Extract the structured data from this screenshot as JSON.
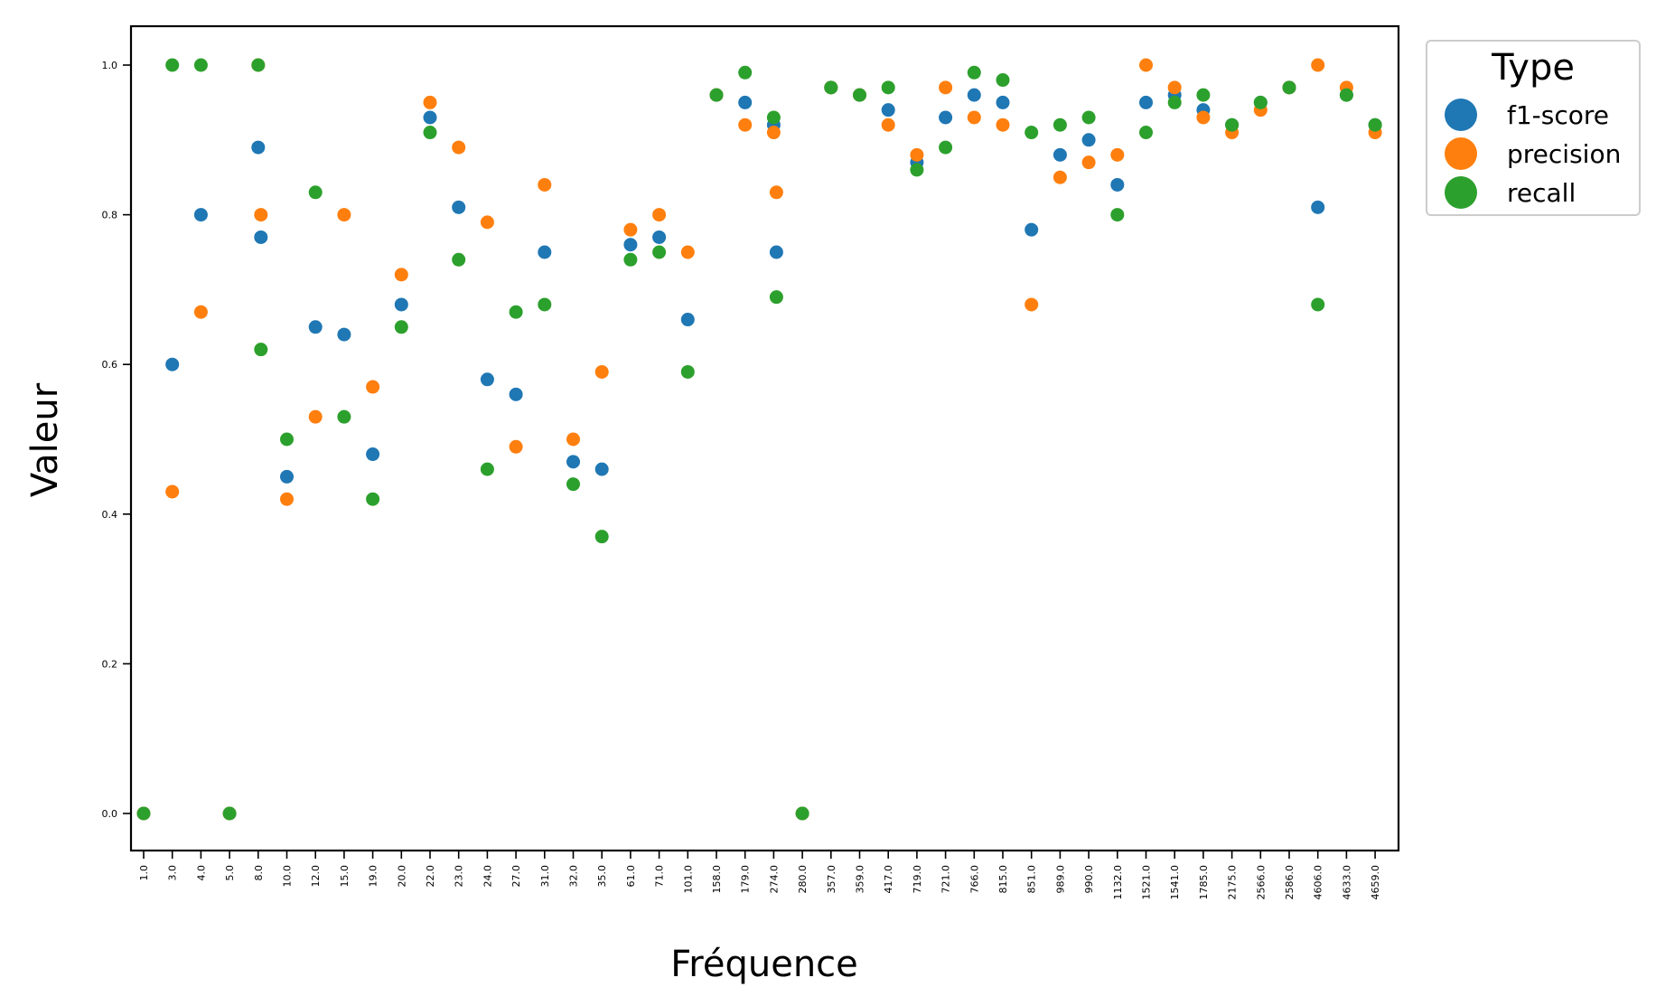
{
  "chart_data": {
    "type": "scatter",
    "xlabel": "Fréquence",
    "ylabel": "Valeur",
    "categories": [
      "1.0",
      "3.0",
      "4.0",
      "5.0",
      "8.0",
      "10.0",
      "12.0",
      "15.0",
      "19.0",
      "20.0",
      "22.0",
      "23.0",
      "24.0",
      "27.0",
      "31.0",
      "32.0",
      "35.0",
      "61.0",
      "71.0",
      "101.0",
      "158.0",
      "179.0",
      "274.0",
      "280.0",
      "357.0",
      "359.0",
      "417.0",
      "719.0",
      "721.0",
      "766.0",
      "815.0",
      "851.0",
      "989.0",
      "990.0",
      "1132.0",
      "1521.0",
      "1541.0",
      "1785.0",
      "2175.0",
      "2566.0",
      "2586.0",
      "4606.0",
      "4633.0",
      "4659.0"
    ],
    "ylim": [
      -0.05,
      1.05
    ],
    "yticks": [
      0.0,
      0.2,
      0.4,
      0.6,
      0.8,
      1.0
    ],
    "ytick_labels": [
      "0.0",
      "0.2",
      "0.4",
      "0.6",
      "0.8",
      "1.0"
    ],
    "grid": false,
    "legend": {
      "title": "Type",
      "position": "outside-top-right"
    },
    "series": [
      {
        "name": "f1-score",
        "color": "#1f77b4",
        "points": [
          {
            "x": "1.0",
            "y": 0.0
          },
          {
            "x": "3.0",
            "y": 0.6
          },
          {
            "x": "4.0",
            "y": 0.8
          },
          {
            "x": "5.0",
            "y": 0.0
          },
          {
            "x": "8.0",
            "y": 0.89
          },
          {
            "x": "8.0",
            "y": 0.77
          },
          {
            "x": "10.0",
            "y": 0.45
          },
          {
            "x": "12.0",
            "y": 0.65
          },
          {
            "x": "15.0",
            "y": 0.64
          },
          {
            "x": "19.0",
            "y": 0.48
          },
          {
            "x": "20.0",
            "y": 0.68
          },
          {
            "x": "22.0",
            "y": 0.93
          },
          {
            "x": "23.0",
            "y": 0.81
          },
          {
            "x": "24.0",
            "y": 0.58
          },
          {
            "x": "27.0",
            "y": 0.56
          },
          {
            "x": "31.0",
            "y": 0.75
          },
          {
            "x": "32.0",
            "y": 0.47
          },
          {
            "x": "35.0",
            "y": 0.46
          },
          {
            "x": "61.0",
            "y": 0.76
          },
          {
            "x": "71.0",
            "y": 0.77
          },
          {
            "x": "101.0",
            "y": 0.66
          },
          {
            "x": "158.0",
            "y": 0.96
          },
          {
            "x": "179.0",
            "y": 0.95
          },
          {
            "x": "274.0",
            "y": 0.92
          },
          {
            "x": "274.0",
            "y": 0.75
          },
          {
            "x": "280.0",
            "y": 0.0
          },
          {
            "x": "357.0",
            "y": 0.97
          },
          {
            "x": "359.0",
            "y": 0.96
          },
          {
            "x": "417.0",
            "y": 0.94
          },
          {
            "x": "719.0",
            "y": 0.87
          },
          {
            "x": "721.0",
            "y": 0.93
          },
          {
            "x": "766.0",
            "y": 0.96
          },
          {
            "x": "815.0",
            "y": 0.95
          },
          {
            "x": "851.0",
            "y": 0.78
          },
          {
            "x": "989.0",
            "y": 0.88
          },
          {
            "x": "990.0",
            "y": 0.9
          },
          {
            "x": "1132.0",
            "y": 0.84
          },
          {
            "x": "1521.0",
            "y": 0.95
          },
          {
            "x": "1541.0",
            "y": 0.96
          },
          {
            "x": "1785.0",
            "y": 0.94
          },
          {
            "x": "2175.0",
            "y": 0.92
          },
          {
            "x": "2566.0",
            "y": 0.95
          },
          {
            "x": "2586.0",
            "y": 0.97
          },
          {
            "x": "4606.0",
            "y": 0.81
          },
          {
            "x": "4633.0",
            "y": 0.96
          },
          {
            "x": "4659.0",
            "y": 0.92
          }
        ]
      },
      {
        "name": "precision",
        "color": "#ff7f0e",
        "points": [
          {
            "x": "1.0",
            "y": 0.0
          },
          {
            "x": "3.0",
            "y": 0.43
          },
          {
            "x": "4.0",
            "y": 0.67
          },
          {
            "x": "5.0",
            "y": 0.0
          },
          {
            "x": "8.0",
            "y": 1.0
          },
          {
            "x": "8.0",
            "y": 0.8
          },
          {
            "x": "10.0",
            "y": 0.42
          },
          {
            "x": "12.0",
            "y": 0.53
          },
          {
            "x": "15.0",
            "y": 0.8
          },
          {
            "x": "19.0",
            "y": 0.57
          },
          {
            "x": "20.0",
            "y": 0.72
          },
          {
            "x": "22.0",
            "y": 0.95
          },
          {
            "x": "23.0",
            "y": 0.89
          },
          {
            "x": "24.0",
            "y": 0.79
          },
          {
            "x": "27.0",
            "y": 0.49
          },
          {
            "x": "31.0",
            "y": 0.84
          },
          {
            "x": "32.0",
            "y": 0.5
          },
          {
            "x": "35.0",
            "y": 0.59
          },
          {
            "x": "61.0",
            "y": 0.78
          },
          {
            "x": "71.0",
            "y": 0.8
          },
          {
            "x": "101.0",
            "y": 0.75
          },
          {
            "x": "158.0",
            "y": 0.96
          },
          {
            "x": "179.0",
            "y": 0.92
          },
          {
            "x": "274.0",
            "y": 0.91
          },
          {
            "x": "274.0",
            "y": 0.83
          },
          {
            "x": "280.0",
            "y": 0.0
          },
          {
            "x": "357.0",
            "y": 0.97
          },
          {
            "x": "359.0",
            "y": 0.96
          },
          {
            "x": "417.0",
            "y": 0.92
          },
          {
            "x": "719.0",
            "y": 0.88
          },
          {
            "x": "721.0",
            "y": 0.97
          },
          {
            "x": "766.0",
            "y": 0.93
          },
          {
            "x": "815.0",
            "y": 0.92
          },
          {
            "x": "851.0",
            "y": 0.68
          },
          {
            "x": "989.0",
            "y": 0.85
          },
          {
            "x": "990.0",
            "y": 0.87
          },
          {
            "x": "1132.0",
            "y": 0.88
          },
          {
            "x": "1521.0",
            "y": 1.0
          },
          {
            "x": "1541.0",
            "y": 0.97
          },
          {
            "x": "1785.0",
            "y": 0.93
          },
          {
            "x": "2175.0",
            "y": 0.91
          },
          {
            "x": "2566.0",
            "y": 0.94
          },
          {
            "x": "2586.0",
            "y": 0.97
          },
          {
            "x": "4606.0",
            "y": 1.0
          },
          {
            "x": "4633.0",
            "y": 0.97
          },
          {
            "x": "4659.0",
            "y": 0.91
          }
        ]
      },
      {
        "name": "recall",
        "color": "#2ca02c",
        "points": [
          {
            "x": "1.0",
            "y": 0.0
          },
          {
            "x": "3.0",
            "y": 1.0
          },
          {
            "x": "4.0",
            "y": 1.0
          },
          {
            "x": "5.0",
            "y": 0.0
          },
          {
            "x": "8.0",
            "y": 1.0
          },
          {
            "x": "8.0",
            "y": 0.62
          },
          {
            "x": "10.0",
            "y": 0.5
          },
          {
            "x": "12.0",
            "y": 0.83
          },
          {
            "x": "15.0",
            "y": 0.53
          },
          {
            "x": "19.0",
            "y": 0.42
          },
          {
            "x": "20.0",
            "y": 0.65
          },
          {
            "x": "22.0",
            "y": 0.91
          },
          {
            "x": "23.0",
            "y": 0.74
          },
          {
            "x": "24.0",
            "y": 0.46
          },
          {
            "x": "27.0",
            "y": 0.67
          },
          {
            "x": "31.0",
            "y": 0.68
          },
          {
            "x": "32.0",
            "y": 0.44
          },
          {
            "x": "35.0",
            "y": 0.37
          },
          {
            "x": "61.0",
            "y": 0.74
          },
          {
            "x": "71.0",
            "y": 0.75
          },
          {
            "x": "101.0",
            "y": 0.59
          },
          {
            "x": "158.0",
            "y": 0.96
          },
          {
            "x": "179.0",
            "y": 0.99
          },
          {
            "x": "274.0",
            "y": 0.93
          },
          {
            "x": "274.0",
            "y": 0.69
          },
          {
            "x": "280.0",
            "y": 0.0
          },
          {
            "x": "357.0",
            "y": 0.97
          },
          {
            "x": "359.0",
            "y": 0.96
          },
          {
            "x": "417.0",
            "y": 0.97
          },
          {
            "x": "719.0",
            "y": 0.86
          },
          {
            "x": "721.0",
            "y": 0.89
          },
          {
            "x": "766.0",
            "y": 0.99
          },
          {
            "x": "815.0",
            "y": 0.98
          },
          {
            "x": "851.0",
            "y": 0.91
          },
          {
            "x": "989.0",
            "y": 0.92
          },
          {
            "x": "990.0",
            "y": 0.93
          },
          {
            "x": "1132.0",
            "y": 0.8
          },
          {
            "x": "1521.0",
            "y": 0.91
          },
          {
            "x": "1541.0",
            "y": 0.95
          },
          {
            "x": "1785.0",
            "y": 0.96
          },
          {
            "x": "2175.0",
            "y": 0.92
          },
          {
            "x": "2566.0",
            "y": 0.95
          },
          {
            "x": "2586.0",
            "y": 0.97
          },
          {
            "x": "4606.0",
            "y": 0.68
          },
          {
            "x": "4633.0",
            "y": 0.96
          },
          {
            "x": "4659.0",
            "y": 0.92
          }
        ]
      }
    ]
  }
}
